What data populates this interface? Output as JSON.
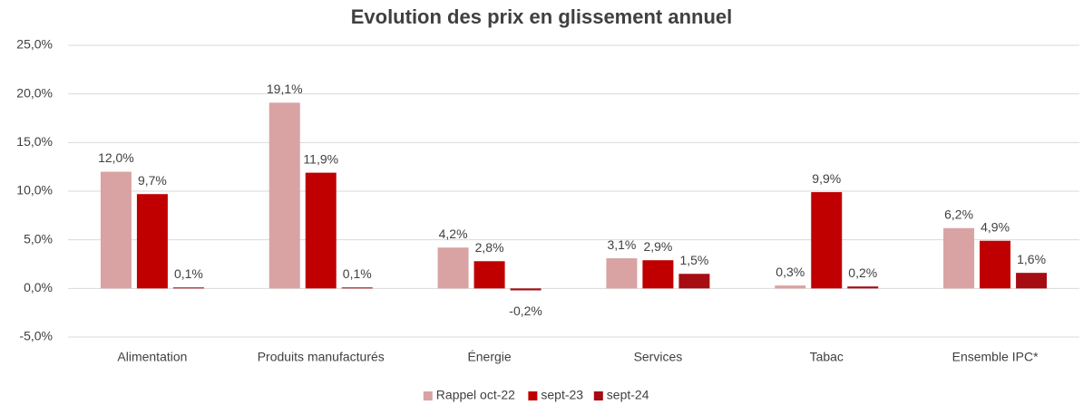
{
  "chart_data": {
    "type": "bar",
    "title": "Evolution des prix en glissement annuel",
    "categories": [
      "Alimentation",
      "Produits manufacturés",
      "Énergie",
      "Services",
      "Tabac",
      "Ensemble IPC*"
    ],
    "series": [
      {
        "name": "Rappel oct-22",
        "color": "#d9a3a3",
        "values": [
          12.0,
          19.1,
          4.2,
          3.1,
          0.3,
          6.2
        ],
        "value_labels": [
          "12,0%",
          "19,1%",
          "4,2%",
          "3,1%",
          "0,3%",
          "6,2%"
        ]
      },
      {
        "name": "sept-23",
        "color": "#c00000",
        "values": [
          9.7,
          11.9,
          2.8,
          2.9,
          9.9,
          4.9
        ],
        "value_labels": [
          "9,7%",
          "11,9%",
          "2,8%",
          "2,9%",
          "9,9%",
          "4,9%"
        ]
      },
      {
        "name": "sept-24",
        "color": "#a50d12",
        "values": [
          0.1,
          0.1,
          -0.2,
          1.5,
          0.2,
          1.6
        ],
        "value_labels": [
          "0,1%",
          "0,1%",
          "-0,2%",
          "1,5%",
          "0,2%",
          "1,6%"
        ]
      }
    ],
    "ylim": [
      -5,
      25
    ],
    "yticks": [
      {
        "value": -5,
        "label": "-5,0%"
      },
      {
        "value": 0,
        "label": "0,0%"
      },
      {
        "value": 5,
        "label": "5,0%"
      },
      {
        "value": 10,
        "label": "10,0%"
      },
      {
        "value": 15,
        "label": "15,0%"
      },
      {
        "value": 20,
        "label": "20,0%"
      },
      {
        "value": 25,
        "label": "25,0%"
      }
    ],
    "grid": true,
    "legend": "bottom"
  }
}
